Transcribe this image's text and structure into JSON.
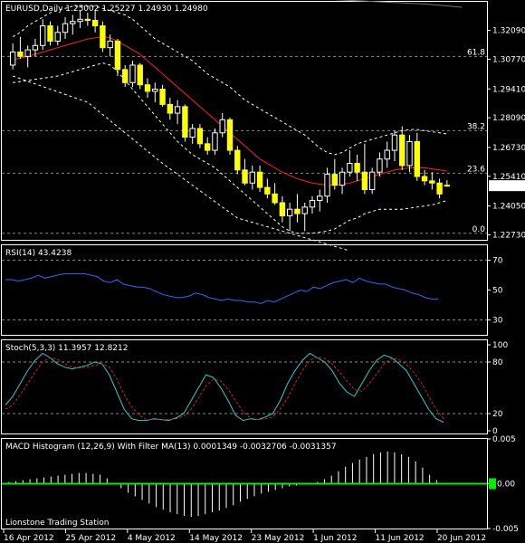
{
  "chart_data": [
    {
      "type": "candlestick",
      "title": "EURUSD,Daily  1.25002  1.25227  1.24930  1.24980",
      "ylim": [
        1.225,
        1.334
      ],
      "price_ticks": [
        "1.32090",
        "1.30770",
        "1.29410",
        "1.28090",
        "1.26730",
        "1.25410",
        "1.24050",
        "1.22730"
      ],
      "current_price": "1.24980",
      "fib_levels": [
        {
          "label": "61.8",
          "value": 1.309
        },
        {
          "label": "38.2",
          "value": 1.275
        },
        {
          "label": "23.6",
          "value": 1.2555
        },
        {
          "label": "0.0",
          "value": 1.228
        }
      ],
      "candles": [
        {
          "o": 1.305,
          "h": 1.315,
          "l": 1.303,
          "c": 1.311
        },
        {
          "o": 1.311,
          "h": 1.318,
          "l": 1.308,
          "c": 1.309
        },
        {
          "o": 1.309,
          "h": 1.314,
          "l": 1.304,
          "c": 1.312
        },
        {
          "o": 1.312,
          "h": 1.317,
          "l": 1.309,
          "c": 1.314
        },
        {
          "o": 1.314,
          "h": 1.326,
          "l": 1.312,
          "c": 1.323
        },
        {
          "o": 1.323,
          "h": 1.325,
          "l": 1.314,
          "c": 1.316
        },
        {
          "o": 1.316,
          "h": 1.323,
          "l": 1.314,
          "c": 1.32
        },
        {
          "o": 1.32,
          "h": 1.327,
          "l": 1.317,
          "c": 1.324
        },
        {
          "o": 1.324,
          "h": 1.328,
          "l": 1.319,
          "c": 1.325
        },
        {
          "o": 1.325,
          "h": 1.33,
          "l": 1.322,
          "c": 1.326
        },
        {
          "o": 1.326,
          "h": 1.329,
          "l": 1.323,
          "c": 1.3255
        },
        {
          "o": 1.3255,
          "h": 1.33,
          "l": 1.32,
          "c": 1.323
        },
        {
          "o": 1.323,
          "h": 1.325,
          "l": 1.311,
          "c": 1.313
        },
        {
          "o": 1.313,
          "h": 1.319,
          "l": 1.309,
          "c": 1.316
        },
        {
          "o": 1.316,
          "h": 1.317,
          "l": 1.3,
          "c": 1.303
        },
        {
          "o": 1.303,
          "h": 1.305,
          "l": 1.295,
          "c": 1.297
        },
        {
          "o": 1.297,
          "h": 1.307,
          "l": 1.295,
          "c": 1.305
        },
        {
          "o": 1.305,
          "h": 1.306,
          "l": 1.294,
          "c": 1.296
        },
        {
          "o": 1.296,
          "h": 1.299,
          "l": 1.29,
          "c": 1.293
        },
        {
          "o": 1.293,
          "h": 1.297,
          "l": 1.288,
          "c": 1.294
        },
        {
          "o": 1.294,
          "h": 1.296,
          "l": 1.286,
          "c": 1.287
        },
        {
          "o": 1.287,
          "h": 1.29,
          "l": 1.28,
          "c": 1.283
        },
        {
          "o": 1.283,
          "h": 1.289,
          "l": 1.278,
          "c": 1.286
        },
        {
          "o": 1.286,
          "h": 1.287,
          "l": 1.27,
          "c": 1.272
        },
        {
          "o": 1.272,
          "h": 1.278,
          "l": 1.269,
          "c": 1.276
        },
        {
          "o": 1.276,
          "h": 1.278,
          "l": 1.267,
          "c": 1.269
        },
        {
          "o": 1.269,
          "h": 1.272,
          "l": 1.264,
          "c": 1.266
        },
        {
          "o": 1.266,
          "h": 1.276,
          "l": 1.264,
          "c": 1.274
        },
        {
          "o": 1.274,
          "h": 1.283,
          "l": 1.272,
          "c": 1.28
        },
        {
          "o": 1.28,
          "h": 1.281,
          "l": 1.264,
          "c": 1.266
        },
        {
          "o": 1.266,
          "h": 1.268,
          "l": 1.255,
          "c": 1.257
        },
        {
          "o": 1.257,
          "h": 1.262,
          "l": 1.25,
          "c": 1.251
        },
        {
          "o": 1.251,
          "h": 1.259,
          "l": 1.248,
          "c": 1.256
        },
        {
          "o": 1.256,
          "h": 1.259,
          "l": 1.247,
          "c": 1.249
        },
        {
          "o": 1.249,
          "h": 1.253,
          "l": 1.244,
          "c": 1.246
        },
        {
          "o": 1.246,
          "h": 1.251,
          "l": 1.241,
          "c": 1.242
        },
        {
          "o": 1.242,
          "h": 1.245,
          "l": 1.233,
          "c": 1.236
        },
        {
          "o": 1.236,
          "h": 1.242,
          "l": 1.229,
          "c": 1.239
        },
        {
          "o": 1.239,
          "h": 1.246,
          "l": 1.233,
          "c": 1.237
        },
        {
          "o": 1.237,
          "h": 1.242,
          "l": 1.229,
          "c": 1.24
        },
        {
          "o": 1.24,
          "h": 1.245,
          "l": 1.237,
          "c": 1.243
        },
        {
          "o": 1.243,
          "h": 1.248,
          "l": 1.238,
          "c": 1.245
        },
        {
          "o": 1.245,
          "h": 1.258,
          "l": 1.242,
          "c": 1.255
        },
        {
          "o": 1.255,
          "h": 1.262,
          "l": 1.248,
          "c": 1.25
        },
        {
          "o": 1.25,
          "h": 1.258,
          "l": 1.246,
          "c": 1.256
        },
        {
          "o": 1.256,
          "h": 1.266,
          "l": 1.254,
          "c": 1.26
        },
        {
          "o": 1.26,
          "h": 1.264,
          "l": 1.252,
          "c": 1.256
        },
        {
          "o": 1.256,
          "h": 1.269,
          "l": 1.246,
          "c": 1.248
        },
        {
          "o": 1.248,
          "h": 1.258,
          "l": 1.246,
          "c": 1.256
        },
        {
          "o": 1.256,
          "h": 1.265,
          "l": 1.254,
          "c": 1.262
        },
        {
          "o": 1.262,
          "h": 1.27,
          "l": 1.258,
          "c": 1.266
        },
        {
          "o": 1.266,
          "h": 1.275,
          "l": 1.261,
          "c": 1.273
        },
        {
          "o": 1.273,
          "h": 1.277,
          "l": 1.257,
          "c": 1.259
        },
        {
          "o": 1.259,
          "h": 1.273,
          "l": 1.256,
          "c": 1.27
        },
        {
          "o": 1.27,
          "h": 1.274,
          "l": 1.252,
          "c": 1.254
        },
        {
          "o": 1.254,
          "h": 1.257,
          "l": 1.25,
          "c": 1.252
        },
        {
          "o": 1.252,
          "h": 1.256,
          "l": 1.248,
          "c": 1.251
        },
        {
          "o": 1.251,
          "h": 1.253,
          "l": 1.244,
          "c": 1.246
        },
        {
          "o": 1.25,
          "h": 1.2523,
          "l": 1.2493,
          "c": 1.2498
        }
      ],
      "sma": [
        1.3075,
        1.3082,
        1.309,
        1.31,
        1.311,
        1.312,
        1.313,
        1.314,
        1.315,
        1.316,
        1.317,
        1.3175,
        1.318,
        1.3175,
        1.316,
        1.314,
        1.312,
        1.31,
        1.307,
        1.304,
        1.301,
        1.298,
        1.295,
        1.292,
        1.289,
        1.286,
        1.283,
        1.28,
        1.277,
        1.274,
        1.271,
        1.268,
        1.265,
        1.262,
        1.26,
        1.258,
        1.256,
        1.2545,
        1.253,
        1.252,
        1.251,
        1.2505,
        1.25,
        1.25,
        1.2505,
        1.251,
        1.252,
        1.253,
        1.254,
        1.255,
        1.256,
        1.257,
        1.2575,
        1.258,
        1.258,
        1.258,
        1.2575,
        1.257,
        1.2565
      ],
      "band_upper": [
        1.318,
        1.32,
        1.323,
        1.325,
        1.327,
        1.329,
        1.33,
        1.331,
        1.332,
        1.332,
        1.332,
        1.332,
        1.331,
        1.33,
        1.329,
        1.328,
        1.326,
        1.323,
        1.32,
        1.317,
        1.315,
        1.313,
        1.311,
        1.309,
        1.307,
        1.304,
        1.301,
        1.299,
        1.297,
        1.295,
        1.292,
        1.289,
        1.287,
        1.285,
        1.283,
        1.281,
        1.279,
        1.277,
        1.275,
        1.273,
        1.27,
        1.267,
        1.265,
        1.264,
        1.265,
        1.267,
        1.269,
        1.27,
        1.271,
        1.272,
        1.273,
        1.274,
        1.275,
        1.2755,
        1.2755,
        1.275,
        1.2745,
        1.274,
        1.2735
      ],
      "band_lower": [
        1.297,
        1.2975,
        1.298,
        1.2985,
        1.299,
        1.2995,
        1.3,
        1.301,
        1.302,
        1.303,
        1.304,
        1.305,
        1.306,
        1.305,
        1.302,
        1.298,
        1.294,
        1.29,
        1.286,
        1.282,
        1.278,
        1.274,
        1.27,
        1.267,
        1.264,
        1.262,
        1.26,
        1.258,
        1.255,
        1.252,
        1.249,
        1.246,
        1.243,
        1.24,
        1.237,
        1.234,
        1.231,
        1.229,
        1.228,
        1.228,
        1.228,
        1.2285,
        1.229,
        1.23,
        1.232,
        1.234,
        1.235,
        1.237,
        1.238,
        1.239,
        1.239,
        1.239,
        1.239,
        1.2395,
        1.24,
        1.2405,
        1.241,
        1.242,
        1.243
      ],
      "envelope_outer": [
        {
          "i": 0,
          "v": 1.3
        },
        {
          "i": 10,
          "v": 1.288
        },
        {
          "i": 20,
          "v": 1.26
        },
        {
          "i": 30,
          "v": 1.235
        },
        {
          "i": 40,
          "v": 1.225
        },
        {
          "i": 45,
          "v": 1.22
        }
      ],
      "envelope_top": [
        {
          "i": 37,
          "v": 1.336
        },
        {
          "i": 49,
          "v": 1.334
        },
        {
          "i": 55,
          "v": 1.333
        },
        {
          "i": 60,
          "v": 1.3315
        }
      ]
    },
    {
      "type": "line",
      "title": "RSI(14) 43.4238",
      "ylim": [
        20,
        80
      ],
      "y_ticks": [
        "70",
        "50",
        "30"
      ],
      "levels": [
        70,
        30
      ],
      "values": [
        57,
        57,
        56,
        57,
        58,
        60,
        58,
        59,
        60,
        61,
        61,
        61,
        61,
        60,
        59,
        56,
        55,
        57,
        54,
        53,
        52,
        52,
        51,
        49,
        47,
        46,
        45,
        45,
        46,
        48,
        47,
        45,
        44,
        43,
        44,
        43,
        43,
        42,
        42,
        41,
        43,
        42,
        44,
        46,
        48,
        50,
        49,
        52,
        51,
        53,
        55,
        56,
        57,
        55,
        58,
        56,
        55,
        54,
        54,
        52,
        51,
        50,
        48,
        47,
        45,
        44,
        44
      ],
      "color": "#3366ff"
    },
    {
      "type": "line",
      "title": "Stoch(5,3,3) 11.3957 12.8212",
      "ylim": [
        0,
        100
      ],
      "y_ticks": [
        "100",
        "80",
        "20",
        "0"
      ],
      "levels": [
        80,
        20
      ],
      "series": [
        {
          "values": [
            30,
            40,
            55,
            70,
            82,
            90,
            85,
            78,
            74,
            72,
            74,
            76,
            80,
            78,
            65,
            45,
            25,
            14,
            12,
            12,
            14,
            13,
            12,
            15,
            20,
            35,
            50,
            65,
            62,
            50,
            35,
            18,
            12,
            14,
            13,
            16,
            20,
            35,
            55,
            70,
            82,
            90,
            85,
            80,
            70,
            55,
            45,
            40,
            55,
            70,
            82,
            88,
            85,
            78,
            70,
            55,
            40,
            25,
            14,
            10
          ],
          "color": "#33cccc"
        },
        {
          "values": [
            25,
            30,
            42,
            55,
            68,
            80,
            85,
            83,
            78,
            74,
            73,
            74,
            76,
            78,
            74,
            60,
            42,
            28,
            18,
            13,
            13,
            13,
            13,
            14,
            17,
            25,
            38,
            52,
            60,
            58,
            48,
            35,
            22,
            15,
            13,
            14,
            16,
            25,
            38,
            55,
            70,
            82,
            86,
            84,
            78,
            68,
            58,
            48,
            46,
            55,
            66,
            78,
            84,
            83,
            77,
            68,
            56,
            40,
            25,
            14
          ],
          "color": "#cc2222"
        }
      ]
    },
    {
      "type": "bar",
      "title": "MACD Histogram (12,26,9) With Filter MA(13) 0.0001349 -0.0032706 -0.0031357",
      "ylim": [
        -0.005,
        0.005
      ],
      "y_ticks": [
        "0.005",
        "0.00",
        "-0.005"
      ],
      "zero_label": "0.00",
      "values": [
        0.0002,
        0.0003,
        0.0004,
        0.0005,
        0.0006,
        0.0007,
        0.0008,
        0.0009,
        0.001,
        0.0011,
        0.0012,
        0.0012,
        0.0011,
        0.001,
        0.0006,
        0.0,
        -0.0005,
        -0.001,
        -0.0014,
        -0.0018,
        -0.0022,
        -0.0026,
        -0.0029,
        -0.0032,
        -0.0034,
        -0.0036,
        -0.0037,
        -0.0036,
        -0.0034,
        -0.0032,
        -0.003,
        -0.0027,
        -0.0024,
        -0.002,
        -0.0017,
        -0.0014,
        -0.0011,
        -0.0009,
        -0.0007,
        -0.0005,
        -0.0003,
        -0.0002,
        -0.0001,
        0.0,
        0.0002,
        0.0005,
        0.0009,
        0.0014,
        0.0019,
        0.0023,
        0.0027,
        0.003,
        0.0033,
        0.0035,
        0.0036,
        0.0035,
        0.0033,
        0.003,
        0.0025,
        0.0018,
        0.001,
        0.0004,
        0.0001
      ],
      "filter_color": "#00ee00"
    }
  ],
  "x_labels": [
    "16 Apr 2012",
    "25 Apr 2012",
    "4 May 2012",
    "14 May 2012",
    "23 May 2012",
    "1 Jun 2012",
    "11 Jun 2012",
    "20 Jun 2012"
  ],
  "watermark": "Lionstone Trading Station",
  "colors": {
    "background": "#000000",
    "bull": "#000000",
    "bear": "#ffff00",
    "wick": "#ffffff",
    "sma": "#ff2020",
    "band": "#ffffff",
    "grid": "#888888",
    "axis": "#ffffff"
  }
}
